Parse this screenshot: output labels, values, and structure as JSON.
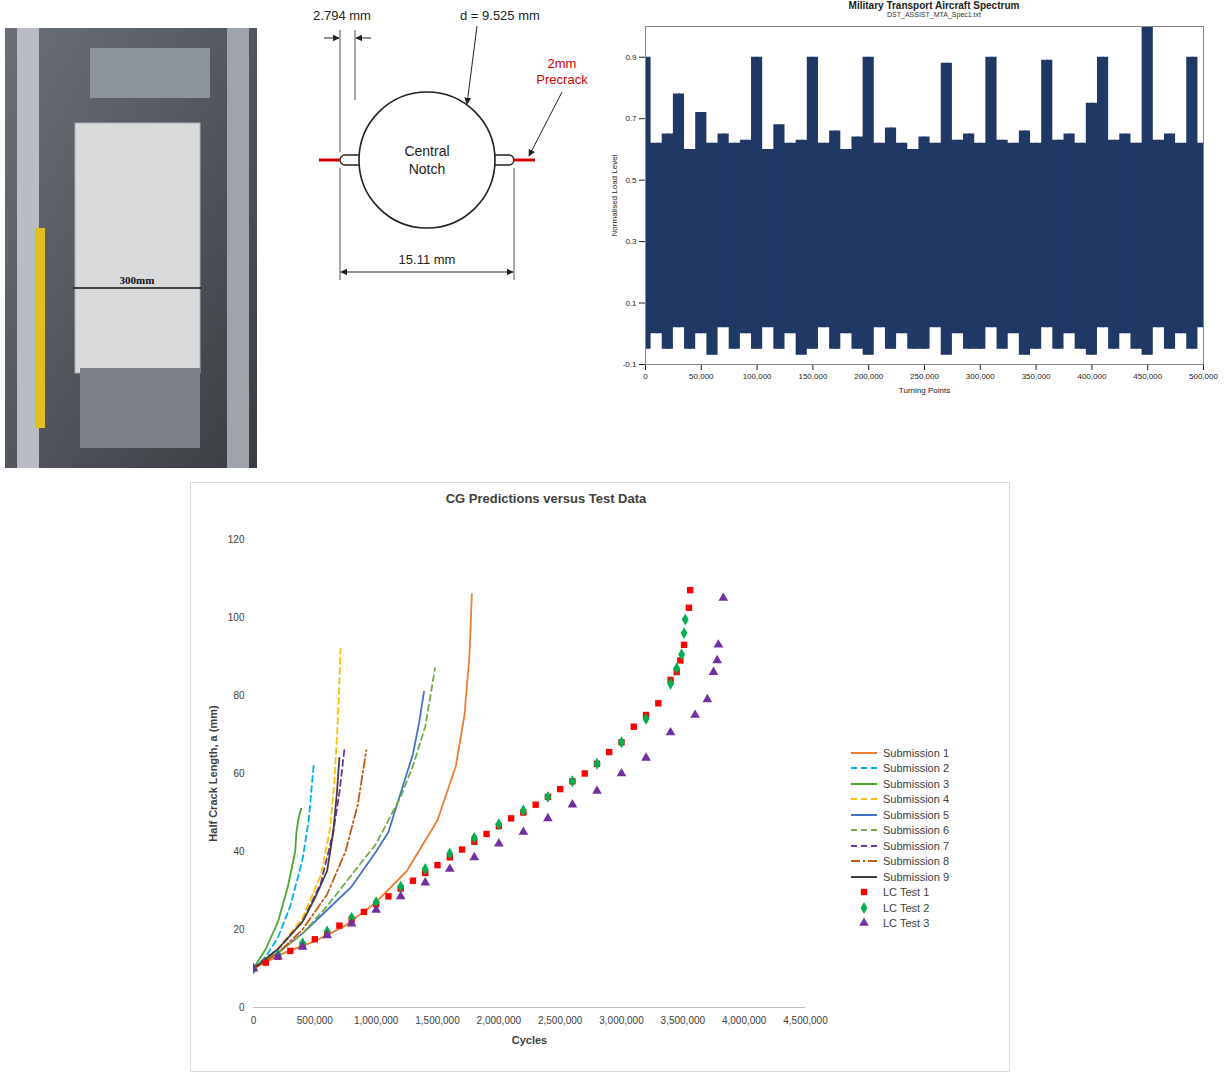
{
  "photo": {
    "label": "300mm"
  },
  "diagram": {
    "notch_width": "2.794 mm",
    "diameter": "d = 9.525 mm",
    "center_label": "Central Notch",
    "overall": "15.11 mm",
    "precrack_label": "2mm Precrack"
  },
  "chart_data": [
    {
      "type": "area",
      "title": "Military Transport Aircraft Spectrum",
      "subtitle": "DST_ASSIST_MTA_Spec1.txt",
      "x_label": "Turning Points",
      "y_label": "Normalised Load Level",
      "color": "#1f3864",
      "x": [
        0,
        10000,
        20000,
        30000,
        40000,
        50000,
        60000,
        70000,
        80000,
        90000,
        100000,
        110000,
        120000,
        130000,
        140000,
        150000,
        160000,
        170000,
        180000,
        190000,
        200000,
        210000,
        220000,
        230000,
        240000,
        250000,
        260000,
        270000,
        280000,
        290000,
        300000,
        310000,
        320000,
        330000,
        340000,
        350000,
        360000,
        370000,
        380000,
        390000,
        400000,
        410000,
        420000,
        430000,
        440000,
        450000,
        460000,
        470000,
        480000,
        490000,
        500000
      ],
      "max": [
        0.9,
        0.62,
        0.65,
        0.78,
        0.6,
        0.72,
        0.62,
        0.65,
        0.62,
        0.63,
        0.9,
        0.6,
        0.68,
        0.62,
        0.63,
        0.9,
        0.62,
        0.66,
        0.6,
        0.64,
        0.9,
        0.62,
        0.67,
        0.62,
        0.6,
        0.64,
        0.62,
        0.88,
        0.63,
        0.65,
        0.62,
        0.9,
        0.63,
        0.62,
        0.66,
        0.62,
        0.89,
        0.63,
        0.65,
        0.62,
        0.75,
        0.9,
        0.63,
        0.65,
        0.62,
        1.0,
        0.63,
        0.65,
        0.62,
        0.9,
        0.62
      ],
      "min": [
        -0.05,
        0.0,
        -0.05,
        0.02,
        -0.05,
        0.0,
        -0.07,
        0.02,
        -0.05,
        0.0,
        -0.05,
        0.02,
        -0.05,
        0.0,
        -0.07,
        -0.05,
        0.02,
        -0.05,
        0.0,
        -0.05,
        -0.07,
        0.02,
        -0.05,
        0.0,
        -0.05,
        -0.05,
        0.02,
        -0.07,
        0.0,
        -0.05,
        -0.05,
        0.02,
        -0.05,
        0.0,
        -0.07,
        -0.05,
        0.02,
        -0.05,
        0.0,
        -0.05,
        -0.07,
        0.02,
        -0.05,
        0.0,
        -0.05,
        -0.07,
        0.02,
        -0.05,
        0.0,
        -0.05,
        0.02
      ],
      "xlim": [
        0,
        500000
      ],
      "xticks": [
        0,
        {
          "value": 50000,
          "label": "50,000"
        },
        {
          "value": 100000,
          "label": "100,000"
        },
        {
          "value": 150000,
          "label": "150,000"
        },
        {
          "value": 200000,
          "label": "200,000"
        },
        {
          "value": 250000,
          "label": "250,000"
        },
        {
          "value": 300000,
          "label": "300,000"
        },
        {
          "value": 350000,
          "label": "350,000"
        },
        {
          "value": 400000,
          "label": "400,000"
        },
        {
          "value": 450000,
          "label": "450,000"
        },
        {
          "value": 500000,
          "label": "500,000"
        }
      ],
      "ylim": [
        -0.1,
        1.0
      ],
      "yticks": [
        -0.1,
        0.1,
        0.3,
        0.5,
        0.7,
        0.9
      ],
      "grid": false
    },
    {
      "type": "line",
      "title": "CG Predictions versus Test Data",
      "x_label": "Cycles",
      "y_label": "Half Crack Length, a (mm)",
      "xlim": [
        0,
        4500000
      ],
      "xticks": [
        0,
        {
          "value": 500000,
          "label": "500,000"
        },
        {
          "value": 1000000,
          "label": "1,000,000"
        },
        {
          "value": 1500000,
          "label": "1,500,000"
        },
        {
          "value": 2000000,
          "label": "2,000,000"
        },
        {
          "value": 2500000,
          "label": "2,500,000"
        },
        {
          "value": 3000000,
          "label": "3,000,000"
        },
        {
          "value": 3500000,
          "label": "3,500,000"
        },
        {
          "value": 4000000,
          "label": "4,000,000"
        },
        {
          "value": 4500000,
          "label": "4,500,000"
        }
      ],
      "ylim": [
        0,
        120
      ],
      "yticks": [
        0,
        20,
        40,
        60,
        80,
        100,
        120
      ],
      "grid": false,
      "legend": "right",
      "series": [
        {
          "name": "Submission 1",
          "type": "line",
          "color": "#ed7d31",
          "line_style": "solid",
          "x": [
            0,
            250000,
            500000,
            750000,
            1000000,
            1250000,
            1500000,
            1650000,
            1720000,
            1760000,
            1780000
          ],
          "values": [
            10,
            14,
            17,
            21,
            27,
            35,
            48,
            62,
            75,
            90,
            106
          ]
        },
        {
          "name": "Submission 2",
          "type": "line",
          "color": "#00b0f0",
          "line_style": "dashed",
          "x": [
            0,
            100000,
            200000,
            300000,
            400000,
            450000,
            490000
          ],
          "values": [
            10,
            13,
            18,
            26,
            38,
            48,
            62
          ]
        },
        {
          "name": "Submission 3",
          "type": "line",
          "color": "#4ea72e",
          "line_style": "solid",
          "x": [
            0,
            100000,
            200000,
            280000,
            320000,
            340000,
            350000,
            370000,
            390000
          ],
          "values": [
            10,
            15,
            22,
            31,
            37,
            40,
            45,
            49,
            51
          ]
        },
        {
          "name": "Submission 4",
          "type": "line",
          "color": "#ffc000",
          "line_style": "dashed",
          "x": [
            0,
            200000,
            400000,
            550000,
            620000,
            660000,
            690000,
            710000
          ],
          "values": [
            10,
            15,
            23,
            34,
            45,
            58,
            75,
            92
          ]
        },
        {
          "name": "Submission 5",
          "type": "line",
          "color": "#4472c4",
          "line_style": "solid",
          "x": [
            0,
            200000,
            400000,
            600000,
            800000,
            1000000,
            1100000,
            1200000,
            1300000,
            1350000,
            1390000
          ],
          "values": [
            10,
            14,
            19,
            25,
            31,
            40,
            45,
            55,
            65,
            73,
            81
          ]
        },
        {
          "name": "Submission 6",
          "type": "line",
          "color": "#70ad47",
          "line_style": "dashed",
          "x": [
            0,
            200000,
            400000,
            600000,
            800000,
            1000000,
            1200000,
            1300000,
            1400000,
            1480000
          ],
          "values": [
            10,
            14,
            19,
            26,
            34,
            42,
            54,
            62,
            72,
            87
          ]
        },
        {
          "name": "Submission 7",
          "type": "line",
          "color": "#7030a0",
          "line_style": "dashed",
          "x": [
            0,
            200000,
            400000,
            550000,
            650000,
            700000,
            740000
          ],
          "values": [
            10,
            15,
            22,
            32,
            45,
            55,
            66
          ]
        },
        {
          "name": "Submission 8",
          "type": "line",
          "color": "#c55a11",
          "line_style": "dashdot",
          "x": [
            0,
            200000,
            400000,
            600000,
            750000,
            850000,
            900000,
            920000
          ],
          "values": [
            10,
            14,
            20,
            29,
            40,
            52,
            62,
            66
          ]
        },
        {
          "name": "Submission 9",
          "type": "line",
          "color": "#404040",
          "line_style": "solid",
          "x": [
            0,
            200000,
            400000,
            500000,
            600000,
            650000,
            680000,
            700000
          ],
          "values": [
            10,
            15,
            22,
            28,
            35,
            45,
            55,
            64
          ]
        },
        {
          "name": "LC Test 1",
          "type": "scatter",
          "color": "#ff0000",
          "marker": "square",
          "x": [
            0,
            100000,
            200000,
            300000,
            400000,
            500000,
            600000,
            700000,
            800000,
            900000,
            1000000,
            1100000,
            1200000,
            1300000,
            1400000,
            1500000,
            1600000,
            1700000,
            1800000,
            1900000,
            2000000,
            2100000,
            2200000,
            2300000,
            2400000,
            2500000,
            2600000,
            2700000,
            2800000,
            2900000,
            3000000,
            3100000,
            3200000,
            3300000,
            3400000,
            3450000,
            3480000,
            3510000,
            3550000,
            3560000
          ],
          "values": [
            10,
            11.5,
            13,
            14.5,
            16,
            17.5,
            19,
            21,
            22.5,
            24.5,
            26.5,
            28.5,
            30.5,
            32.5,
            34.5,
            36.5,
            38.5,
            40.5,
            42.5,
            44.5,
            46.5,
            48.5,
            50,
            52,
            54,
            56,
            58,
            60,
            62.5,
            65.5,
            68,
            72,
            75,
            78,
            84,
            86,
            89,
            93,
            102.5,
            107
          ]
        },
        {
          "name": "LC Test 2",
          "type": "scatter",
          "color": "#00b050",
          "marker": "diamond",
          "x": [
            0,
            200000,
            400000,
            600000,
            800000,
            1000000,
            1200000,
            1400000,
            1600000,
            1800000,
            2000000,
            2200000,
            2400000,
            2600000,
            2800000,
            3000000,
            3200000,
            3400000,
            3450000,
            3490000,
            3510000,
            3520000
          ],
          "values": [
            10,
            13.5,
            16.5,
            19.5,
            23,
            27,
            31,
            35.5,
            39.5,
            43.5,
            47,
            50.5,
            54,
            58,
            62.5,
            68,
            74,
            83,
            87,
            90.5,
            96,
            99.5
          ]
        },
        {
          "name": "LC Test 3",
          "type": "scatter",
          "color": "#7030a0",
          "marker": "triangle",
          "x": [
            0,
            200000,
            400000,
            600000,
            800000,
            1000000,
            1200000,
            1400000,
            1600000,
            1800000,
            2000000,
            2200000,
            2400000,
            2600000,
            2800000,
            3000000,
            3200000,
            3400000,
            3600000,
            3700000,
            3750000,
            3780000,
            3790000,
            3830000
          ],
          "values": [
            10,
            13,
            15.5,
            18.5,
            21.5,
            25,
            28.5,
            32,
            35.5,
            38.5,
            42,
            45,
            48.5,
            52,
            55.5,
            60,
            64,
            70.5,
            75,
            79,
            86,
            89,
            93,
            105
          ]
        }
      ]
    }
  ]
}
